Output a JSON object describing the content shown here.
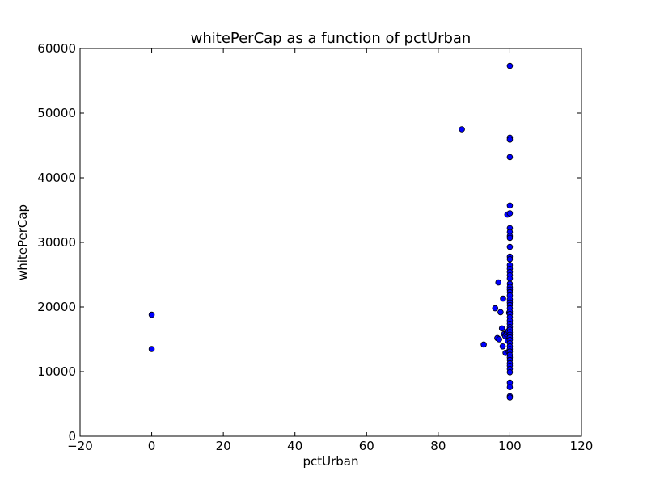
{
  "chart_data": {
    "type": "scatter",
    "title": "whitePerCap as a function of pctUrban",
    "xlabel": "pctUrban",
    "ylabel": "whitePerCap",
    "xlim": [
      -20,
      120
    ],
    "ylim": [
      0,
      60000
    ],
    "xticks": [
      -20,
      0,
      20,
      40,
      60,
      80,
      100,
      120
    ],
    "xtick_labels": [
      "−20",
      "0",
      "20",
      "40",
      "60",
      "80",
      "100",
      "120"
    ],
    "yticks": [
      0,
      10000,
      20000,
      30000,
      40000,
      50000,
      60000
    ],
    "ytick_labels": [
      "0",
      "10000",
      "20000",
      "30000",
      "40000",
      "50000",
      "60000"
    ],
    "grid": false,
    "marker_color": "#0000ff",
    "marker_edge_color": "#000000",
    "points": [
      [
        0,
        18800
      ],
      [
        0,
        13500
      ],
      [
        86.6,
        47500
      ],
      [
        92.7,
        14200
      ],
      [
        95.9,
        19800
      ],
      [
        96.5,
        15200
      ],
      [
        96.8,
        23800
      ],
      [
        97.0,
        15000
      ],
      [
        97.4,
        19200
      ],
      [
        97.8,
        16700
      ],
      [
        98.0,
        13900
      ],
      [
        98.1,
        21300
      ],
      [
        98.4,
        15800
      ],
      [
        98.7,
        15500
      ],
      [
        98.8,
        12900
      ],
      [
        99.0,
        15800
      ],
      [
        99.2,
        16100
      ],
      [
        99.3,
        34300
      ],
      [
        99.4,
        14800
      ],
      [
        99.6,
        16300
      ],
      [
        99.7,
        13100
      ],
      [
        99.8,
        19100
      ],
      [
        100,
        57300
      ],
      [
        100,
        46200
      ],
      [
        100,
        45900
      ],
      [
        100,
        43200
      ],
      [
        100,
        35700
      ],
      [
        100,
        34500
      ],
      [
        100,
        32200
      ],
      [
        100,
        31600
      ],
      [
        100,
        31000
      ],
      [
        100,
        30700
      ],
      [
        100,
        29300
      ],
      [
        100,
        27800
      ],
      [
        100,
        27400
      ],
      [
        100,
        26500
      ],
      [
        100,
        25900
      ],
      [
        100,
        25400
      ],
      [
        100,
        24900
      ],
      [
        100,
        24400
      ],
      [
        100,
        23600
      ],
      [
        100,
        23100
      ],
      [
        100,
        22700
      ],
      [
        100,
        22300
      ],
      [
        100,
        21800
      ],
      [
        100,
        21200
      ],
      [
        100,
        20700
      ],
      [
        100,
        20300
      ],
      [
        100,
        19800
      ],
      [
        100,
        19300
      ],
      [
        100,
        18900
      ],
      [
        100,
        18400
      ],
      [
        100,
        17900
      ],
      [
        100,
        17400
      ],
      [
        100,
        16900
      ],
      [
        100,
        16500
      ],
      [
        100,
        16100
      ],
      [
        100,
        15700
      ],
      [
        100,
        15300
      ],
      [
        100,
        14900
      ],
      [
        100,
        14400
      ],
      [
        100,
        13900
      ],
      [
        100,
        13500
      ],
      [
        100,
        13100
      ],
      [
        100,
        12600
      ],
      [
        100,
        12200
      ],
      [
        100,
        11800
      ],
      [
        100,
        11300
      ],
      [
        100,
        10900
      ],
      [
        100,
        10400
      ],
      [
        100,
        9900
      ],
      [
        100,
        8300
      ],
      [
        100,
        7600
      ],
      [
        100,
        6200
      ],
      [
        100,
        6000
      ]
    ]
  }
}
